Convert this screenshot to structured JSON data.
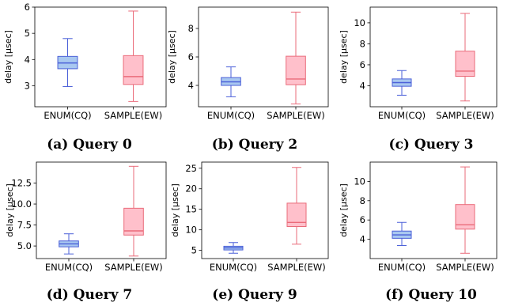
{
  "colors": {
    "enum_fill": "#a9c8f0",
    "enum_stroke": "#4a5fd8",
    "sample_fill": "#ffc0cb",
    "sample_stroke": "#ea6b7a"
  },
  "chart_data": [
    {
      "type": "box",
      "caption": "(a) Query 0",
      "ylabel": "delay [µsec]",
      "categories": [
        "ENUM(CQ)",
        "SAMPLE(EW)"
      ],
      "ylim": [
        2.2,
        6.0
      ],
      "yticks": [
        3,
        4,
        5,
        6
      ],
      "series": [
        {
          "category": "ENUM(CQ)",
          "min": 2.97,
          "q1": 3.65,
          "median": 3.87,
          "q3": 4.12,
          "max": 4.8
        },
        {
          "category": "SAMPLE(EW)",
          "min": 2.4,
          "q1": 3.05,
          "median": 3.35,
          "q3": 4.15,
          "max": 5.85
        }
      ]
    },
    {
      "type": "box",
      "caption": "(b) Query 2",
      "ylabel": "delay [µsec]",
      "categories": [
        "ENUM(CQ)",
        "SAMPLE(EW)"
      ],
      "ylim": [
        2.5,
        9.5
      ],
      "yticks": [
        4,
        6,
        8
      ],
      "series": [
        {
          "category": "ENUM(CQ)",
          "min": 3.2,
          "q1": 4.0,
          "median": 4.25,
          "q3": 4.55,
          "max": 5.3
        },
        {
          "category": "SAMPLE(EW)",
          "min": 2.7,
          "q1": 4.05,
          "median": 4.45,
          "q3": 6.05,
          "max": 9.15
        }
      ]
    },
    {
      "type": "box",
      "caption": "(c) Query 3",
      "ylabel": "delay [µsec]",
      "categories": [
        "ENUM(CQ)",
        "SAMPLE(EW)"
      ],
      "ylim": [
        2.0,
        11.5
      ],
      "yticks": [
        4,
        6,
        8,
        10
      ],
      "series": [
        {
          "category": "ENUM(CQ)",
          "min": 3.1,
          "q1": 3.95,
          "median": 4.3,
          "q3": 4.65,
          "max": 5.45
        },
        {
          "category": "SAMPLE(EW)",
          "min": 2.55,
          "q1": 4.9,
          "median": 5.4,
          "q3": 7.3,
          "max": 10.9
        }
      ]
    },
    {
      "type": "box",
      "caption": "(d) Query 7",
      "ylabel": "delay [µsec]",
      "categories": [
        "ENUM(CQ)",
        "SAMPLE(EW)"
      ],
      "ylim": [
        3.5,
        15.0
      ],
      "yticks": [
        5.0,
        7.5,
        10.0,
        12.5
      ],
      "series": [
        {
          "category": "ENUM(CQ)",
          "min": 4.05,
          "q1": 4.9,
          "median": 5.25,
          "q3": 5.6,
          "max": 6.45
        },
        {
          "category": "SAMPLE(EW)",
          "min": 3.8,
          "q1": 6.3,
          "median": 6.8,
          "q3": 9.5,
          "max": 14.5
        }
      ]
    },
    {
      "type": "box",
      "caption": "(e) Query 9",
      "ylabel": "delay [µsec]",
      "categories": [
        "ENUM(CQ)",
        "SAMPLE(EW)"
      ],
      "ylim": [
        3.0,
        26.5
      ],
      "yticks": [
        5,
        10,
        15,
        20,
        25
      ],
      "series": [
        {
          "category": "ENUM(CQ)",
          "min": 4.3,
          "q1": 5.1,
          "median": 5.6,
          "q3": 6.0,
          "max": 6.9
        },
        {
          "category": "SAMPLE(EW)",
          "min": 6.5,
          "q1": 10.8,
          "median": 11.8,
          "q3": 16.5,
          "max": 25.2
        }
      ]
    },
    {
      "type": "box",
      "caption": "(f) Query 10",
      "ylabel": "delay [µsec]",
      "categories": [
        "ENUM(CQ)",
        "SAMPLE(EW)"
      ],
      "ylim": [
        2.0,
        12.0
      ],
      "yticks": [
        4,
        6,
        8,
        10
      ],
      "series": [
        {
          "category": "ENUM(CQ)",
          "min": 3.35,
          "q1": 4.1,
          "median": 4.45,
          "q3": 4.85,
          "max": 5.75
        },
        {
          "category": "SAMPLE(EW)",
          "min": 2.55,
          "q1": 5.05,
          "median": 5.5,
          "q3": 7.6,
          "max": 11.5
        }
      ]
    }
  ]
}
